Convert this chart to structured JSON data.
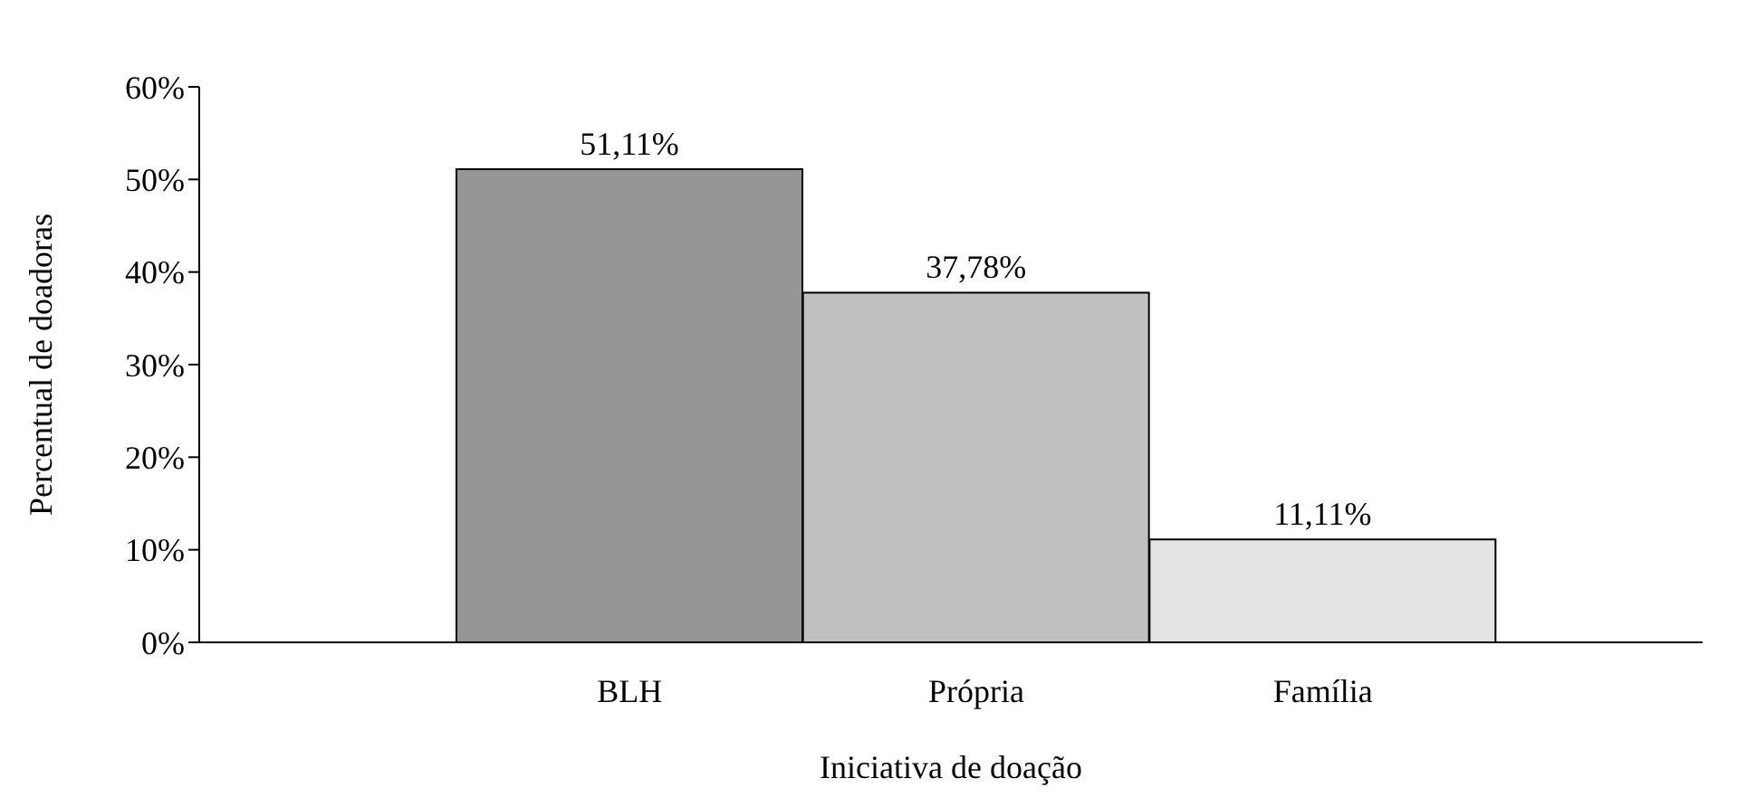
{
  "chart_data": {
    "type": "bar",
    "xlabel": "Iniciativa de doação",
    "ylabel": "Percentual de doadoras",
    "categories": [
      "BLH",
      "Própria",
      "Família"
    ],
    "values": [
      51.11,
      37.78,
      11.11
    ],
    "colors": [
      "#969696",
      "#c0c0c0",
      "#e4e4e4"
    ],
    "value_labels": [
      "51,11%",
      "37,78%",
      "11,11%"
    ],
    "ylim": [
      0,
      60
    ],
    "yticks": [
      {
        "value": 0,
        "label": "0%"
      },
      {
        "value": 10,
        "label": "10%"
      },
      {
        "value": 20,
        "label": "20%"
      },
      {
        "value": 30,
        "label": "30%"
      },
      {
        "value": 40,
        "label": "40%"
      },
      {
        "value": 50,
        "label": "50%"
      },
      {
        "value": 60,
        "label": "60%"
      }
    ],
    "grid": false,
    "legend": false
  }
}
